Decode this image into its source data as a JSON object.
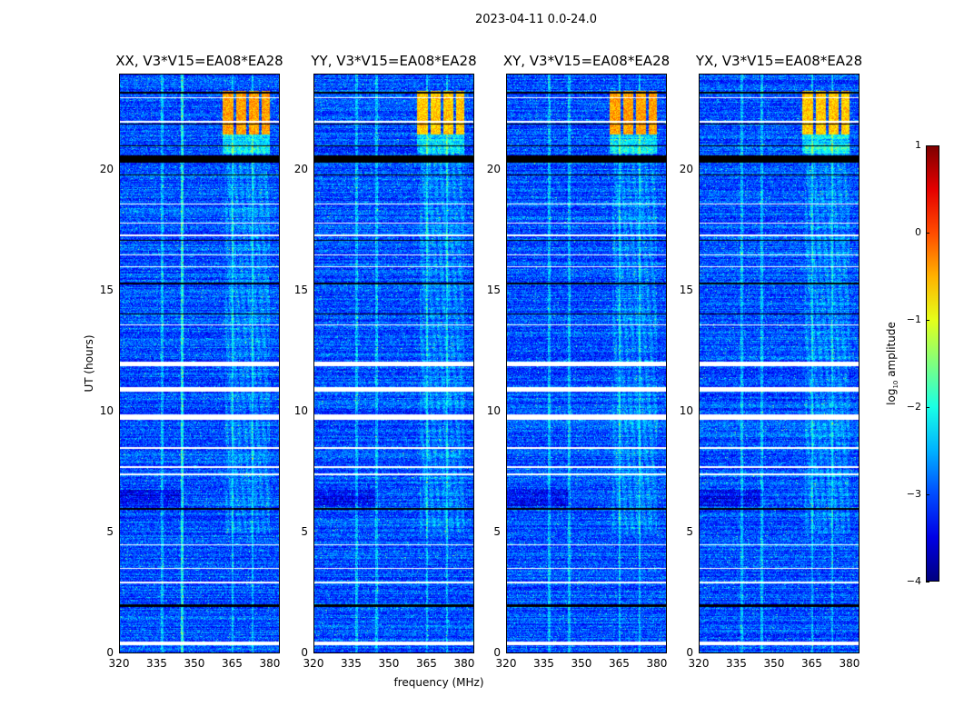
{
  "chart_data": {
    "type": "heatmap",
    "title": "2023-04-11 0.0-24.0",
    "xlabel": "frequency (MHz)",
    "ylabel": "UT (hours)",
    "xlim": [
      320,
      384
    ],
    "ylim": [
      0,
      24
    ],
    "xticks": [
      "320",
      "335",
      "350",
      "365",
      "380"
    ],
    "xtick_values": [
      320,
      335,
      350,
      365,
      380
    ],
    "yticks": [
      "0",
      "5",
      "10",
      "15",
      "20"
    ],
    "ytick_values": [
      0,
      5,
      10,
      15,
      20
    ],
    "panels": [
      {
        "title": "XX, V3*V15=EA08*EA28"
      },
      {
        "title": "YY, V3*V15=EA08*EA28"
      },
      {
        "title": "XY, V3*V15=EA08*EA28"
      },
      {
        "title": "YX, V3*V15=EA08*EA28"
      }
    ],
    "colorbar": {
      "label_prefix": "log",
      "label_sub": "10",
      "label_suffix": " amplitude",
      "range": [
        -4,
        1
      ],
      "ticks": [
        "1",
        "0",
        "−1",
        "−2",
        "−3",
        "−4"
      ],
      "tick_values": [
        1,
        0,
        -1,
        -2,
        -3,
        -4
      ],
      "colormap": "jet"
    },
    "background_level": -3,
    "rfi_freqs_mhz": [
      337,
      345,
      365,
      373
    ],
    "bright_block_hours": [
      21.5,
      23.3
    ],
    "bright_block_freqs_mhz": [
      [
        361,
        365.5
      ],
      [
        366.5,
        370.5
      ],
      [
        371.5,
        375.5
      ],
      [
        376.5,
        380
      ]
    ],
    "flagged_white_hours": [
      [
        0.35,
        0.5
      ],
      [
        2.9,
        3.0
      ],
      [
        3.5,
        3.55
      ],
      [
        4.5,
        4.55
      ],
      [
        7.4,
        7.45
      ],
      [
        7.7,
        7.75
      ],
      [
        8.5,
        8.55
      ],
      [
        9.7,
        9.9
      ],
      [
        10.85,
        11.05
      ],
      [
        11.9,
        12.1
      ],
      [
        13.6,
        13.65
      ],
      [
        16.0,
        16.05
      ],
      [
        16.5,
        16.55
      ],
      [
        17.3,
        17.35
      ],
      [
        17.8,
        17.85
      ],
      [
        18.6,
        18.65
      ],
      [
        22.0,
        22.05
      ],
      [
        23.0,
        23.05
      ]
    ],
    "flagged_black_hours": [
      [
        1.95,
        2.05
      ],
      [
        5.95,
        6.05
      ],
      [
        14.05,
        14.1
      ],
      [
        15.3,
        15.35
      ],
      [
        17.1,
        17.15
      ],
      [
        19.8,
        19.85
      ],
      [
        20.35,
        20.65
      ],
      [
        21.0,
        21.05
      ],
      [
        21.9,
        21.95
      ],
      [
        23.2,
        23.25
      ]
    ]
  }
}
